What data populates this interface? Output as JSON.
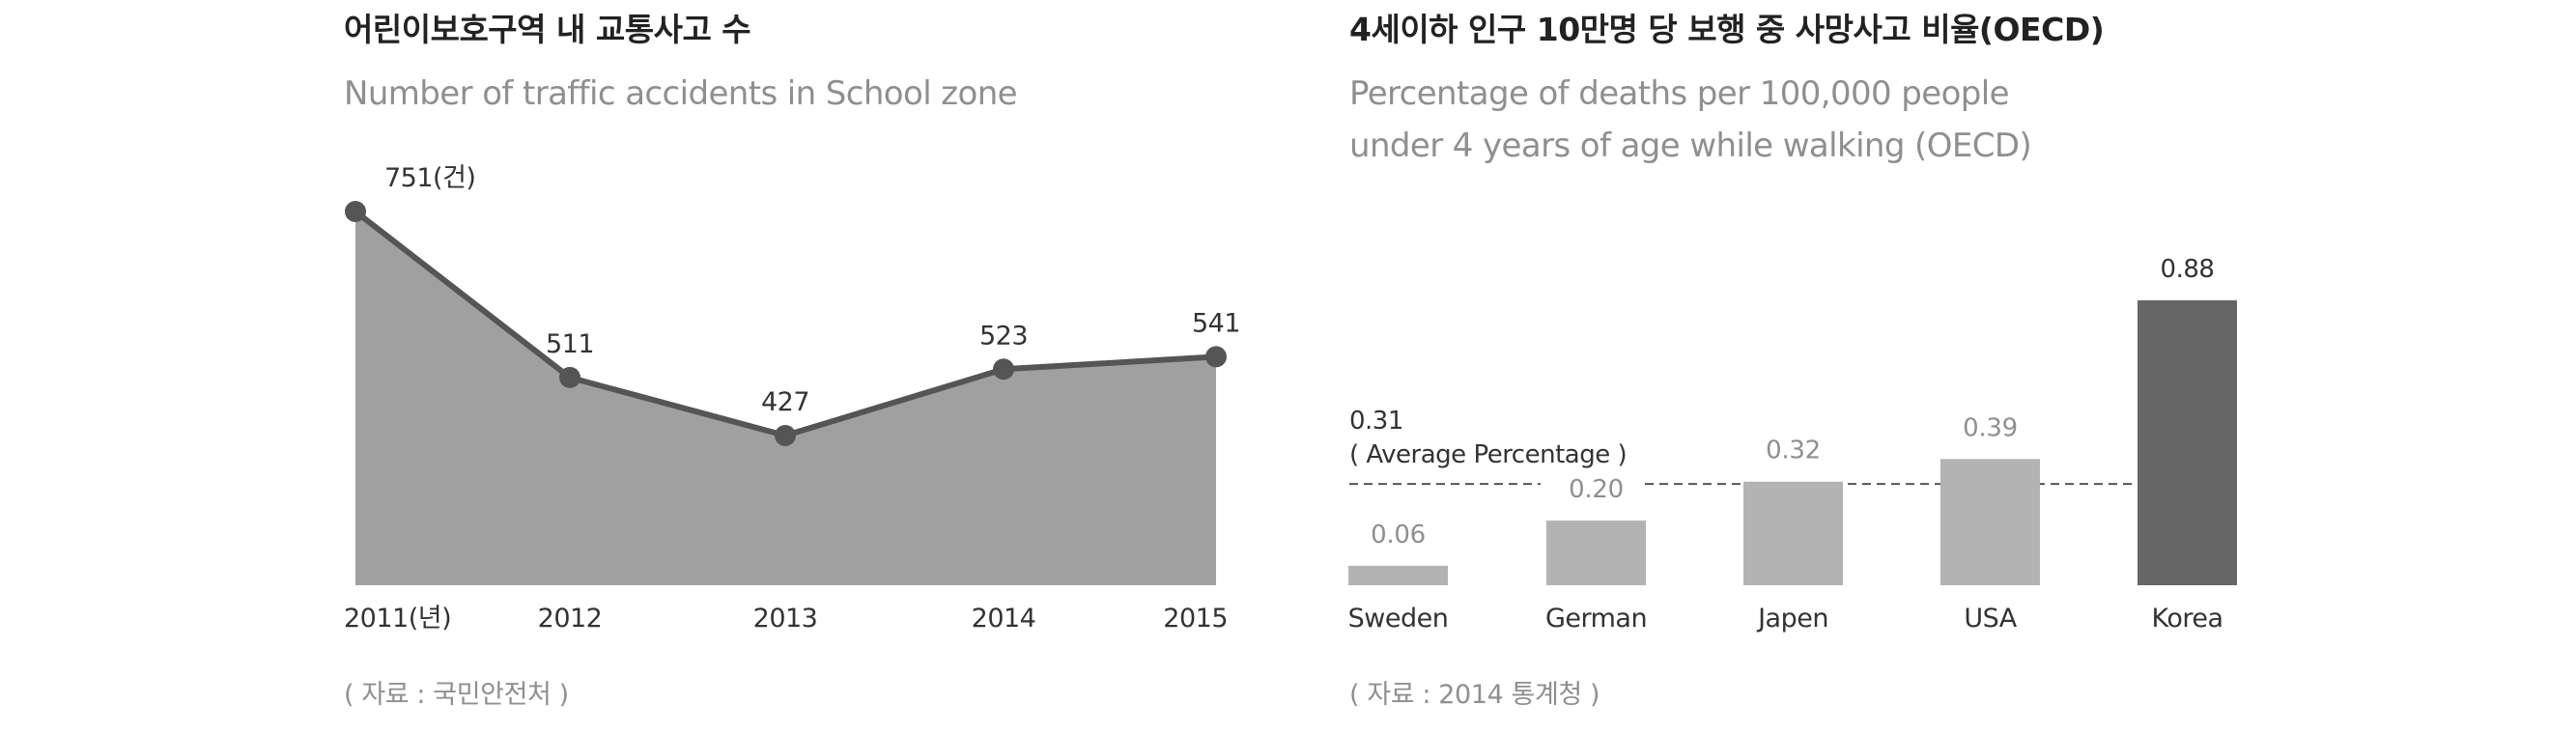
{
  "left": {
    "title": "어린이보호구역 내 교통사고 수",
    "subtitle": "Number of traffic accidents in School zone",
    "source": "( 자료 : 국민안전처 )"
  },
  "right": {
    "title": "4세이하 인구 10만명 당 보행 중 사망사고 비율(OECD)",
    "subtitle": "Percentage of deaths per 100,000 people\nunder 4 years of age while walking (OECD)",
    "source": "( 자료 : 2014 통계청 )"
  },
  "colors": {
    "area_fill": "#a0a0a0",
    "line": "#555555",
    "bar_light": "#b3b3b3",
    "bar_highlight": "#666666",
    "average_line": "#555555"
  },
  "chart_data": [
    {
      "type": "area",
      "x": [
        "2011(년)",
        "2012",
        "2013",
        "2014",
        "2015"
      ],
      "values": [
        751,
        511,
        427,
        523,
        541
      ],
      "data_labels": [
        "751(건)",
        "511",
        "427",
        "523",
        "541"
      ],
      "ylim": [
        320,
        780
      ],
      "grid": false,
      "legend": "none"
    },
    {
      "type": "bar",
      "categories": [
        "Sweden",
        "German",
        "Japen",
        "USA",
        "Korea"
      ],
      "values": [
        0.06,
        0.2,
        0.32,
        0.39,
        0.88
      ],
      "data_labels": [
        "0.06",
        "0.20",
        "0.32",
        "0.39",
        "0.88"
      ],
      "highlight": "Korea",
      "reference_line": {
        "value": 0.31,
        "value_label": "0.31",
        "label": "( Average Percentage )"
      },
      "ylim": [
        0,
        0.88
      ],
      "grid": false,
      "legend": "none"
    }
  ]
}
